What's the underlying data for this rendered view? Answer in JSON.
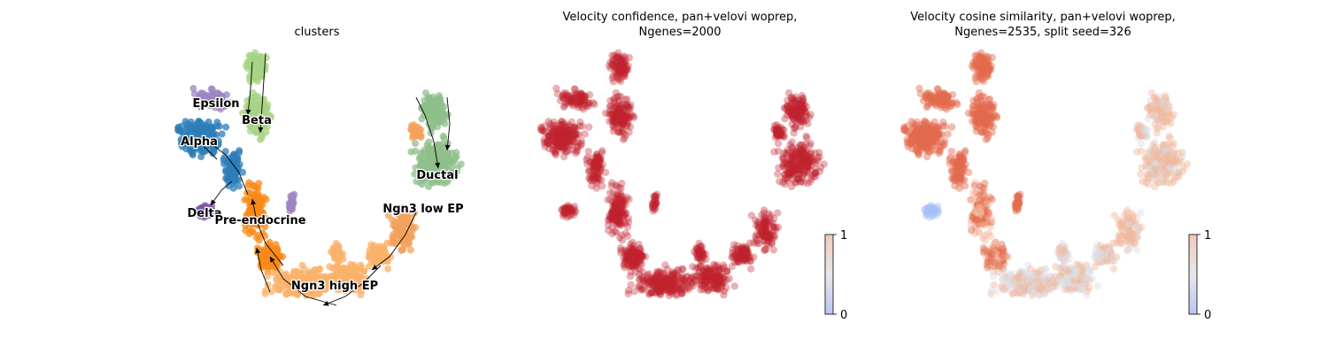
{
  "chart_data": [
    {
      "type": "scatter",
      "title": "clusters",
      "clusters": [
        {
          "name": "Epsilon",
          "color": "#9e86c0"
        },
        {
          "name": "Beta",
          "color": "#a8d384"
        },
        {
          "name": "Alpha",
          "color": "#2d7db8"
        },
        {
          "name": "Ductal",
          "color": "#8fbf8b"
        },
        {
          "name": "Delta",
          "color": "#7e56a6"
        },
        {
          "name": "Pre-endocrine",
          "color": "#f88a1a"
        },
        {
          "name": "Ngn3 low EP",
          "color": "#f3a25c"
        },
        {
          "name": "Ngn3 high EP",
          "color": "#fbb26b"
        }
      ],
      "overlay": "velocity streamlines"
    },
    {
      "type": "scatter",
      "title_line1": "Velocity confidence, pan+velovi woprep,",
      "title_line2": "Ngenes=2000",
      "colorbar": {
        "min_label": "0",
        "max_label": "1",
        "low_color": "#b8c6f2",
        "high_color": "#f0cbb9"
      },
      "point_color": "#c0222e"
    },
    {
      "type": "scatter",
      "title_line1": "Velocity cosine similarity, pan+velovi woprep,",
      "title_line2": "Ngenes=2535, split seed=326",
      "colorbar": {
        "min_label": "0",
        "max_label": "1",
        "low_color": "#b8c6f2",
        "high_color": "#f0cbb9"
      },
      "point_colors": {
        "high": "#e36b4d",
        "mid": "#f2b89d",
        "low": "#dcdde5",
        "lowest": "#a9c2f5"
      }
    }
  ]
}
